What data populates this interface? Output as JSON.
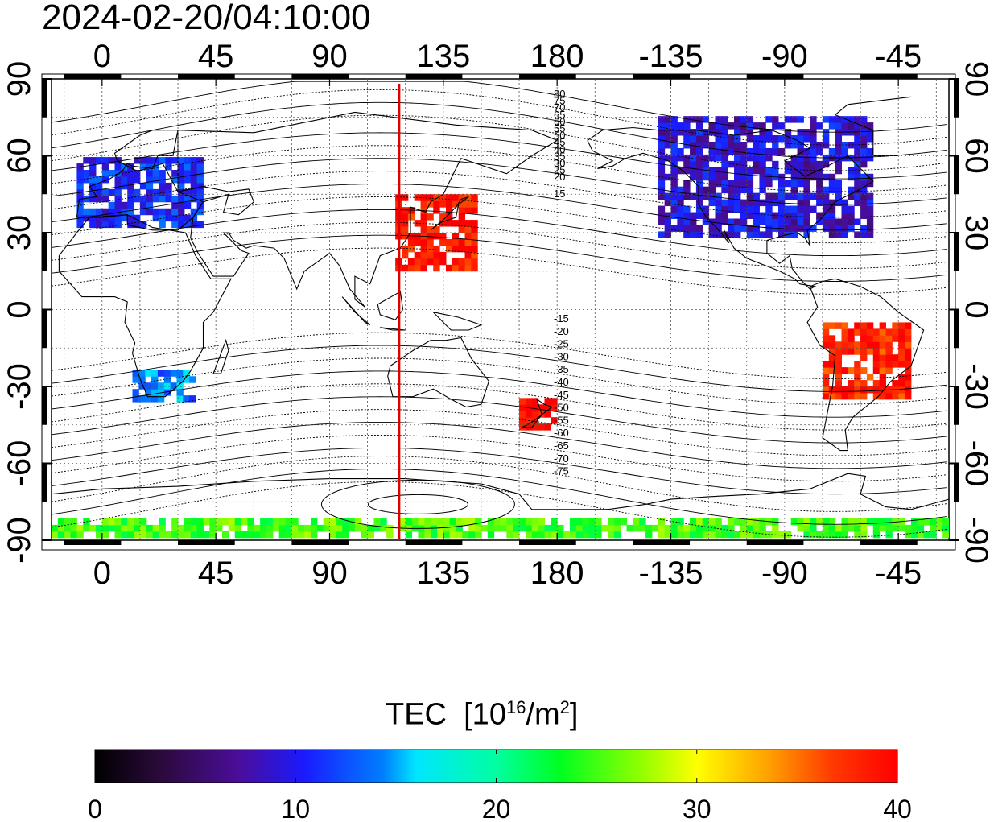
{
  "timestamp": "2024-02-20/04:10:00",
  "colorbar": {
    "label": "TEC",
    "unit_prefix": "[10",
    "unit_exp": "16",
    "unit_mid": "/m",
    "unit_exp2": "2",
    "unit_suffix": "]",
    "min": 0,
    "max": 40,
    "ticks": [
      "0",
      "10",
      "20",
      "30",
      "40"
    ]
  },
  "axes": {
    "x_ticks": [
      "0",
      "45",
      "90",
      "135",
      "180",
      "-135",
      "-90",
      "-45"
    ],
    "y_ticks_left": [
      "90",
      "60",
      "30",
      "0",
      "-30",
      "-60",
      "-90"
    ],
    "y_ticks_right": [
      "90",
      "60",
      "30",
      "0",
      "-30",
      "-60",
      "-90"
    ]
  },
  "contour_labels": [
    "80",
    "75",
    "70",
    "65",
    "60",
    "55",
    "50",
    "45",
    "40",
    "35",
    "30",
    "25",
    "20",
    "15",
    "-15",
    "-20",
    "-25",
    "-30",
    "-35",
    "-40",
    "-45",
    "-50",
    "-55",
    "-60",
    "-65",
    "-70",
    "-75"
  ],
  "map": {
    "longitude_range": [
      -20,
      335
    ],
    "latitude_range": [
      -90,
      90
    ],
    "subsolar_longitude": 117.5,
    "colors": {
      "sun_line": "#e00000",
      "land": "#000000",
      "grid": "#555555"
    },
    "tec_regions": [
      {
        "name": "europe",
        "lon": [
          -10,
          40
        ],
        "lat": [
          32,
          58
        ],
        "tec": 11
      },
      {
        "name": "east-asia",
        "lon": [
          116,
          148
        ],
        "lat": [
          15,
          45
        ],
        "tec": 39
      },
      {
        "name": "north-america",
        "lon": [
          -140,
          -55
        ],
        "lat": [
          28,
          75
        ],
        "tec": 9
      },
      {
        "name": "south-america",
        "lon": [
          -75,
          -40
        ],
        "lat": [
          -35,
          -5
        ],
        "tec": 38
      },
      {
        "name": "south-africa",
        "lon": [
          12,
          35
        ],
        "lat": [
          -36,
          -24
        ],
        "tec": 14
      },
      {
        "name": "new-zealand",
        "lon": [
          165,
          178
        ],
        "lat": [
          -47,
          -35
        ],
        "tec": 40
      },
      {
        "name": "antarctica",
        "lon": [
          -20,
          335
        ],
        "lat": [
          -89,
          -82
        ],
        "tec": 25
      }
    ]
  }
}
